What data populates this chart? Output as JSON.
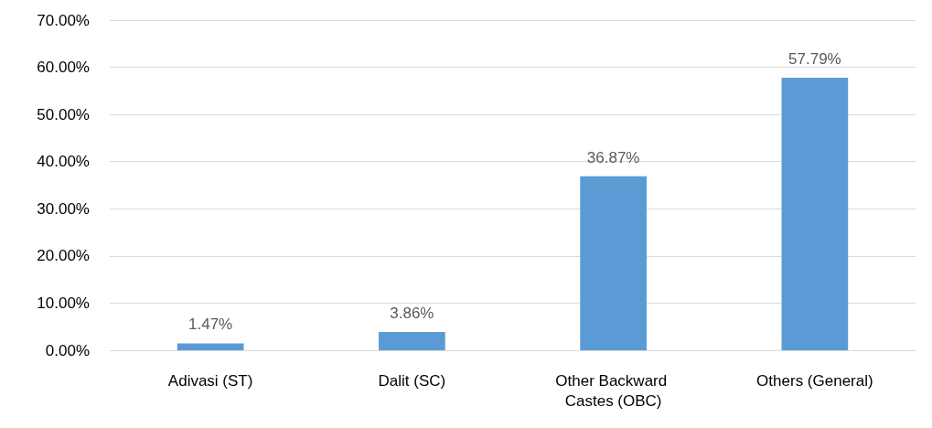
{
  "chart_data": {
    "type": "bar",
    "categories": [
      "Adivasi (ST)",
      "Dalit (SC)",
      "Other Backward Castes (OBC)",
      "Others (General)"
    ],
    "values": [
      1.47,
      3.86,
      36.87,
      57.79
    ],
    "value_labels": [
      "1.47%",
      "3.86%",
      "36.87%",
      "57.79%"
    ],
    "color": "#5b9bd5",
    "ylim": [
      0,
      70
    ],
    "yticks": [
      {
        "value": 0,
        "label": "0.00%"
      },
      {
        "value": 10,
        "label": "10.00%"
      },
      {
        "value": 20,
        "label": "20.00%"
      },
      {
        "value": 30,
        "label": "30.00%"
      },
      {
        "value": 40,
        "label": "40.00%"
      },
      {
        "value": 50,
        "label": "50.00%"
      },
      {
        "value": 60,
        "label": "60.00%"
      },
      {
        "value": 70,
        "label": "70.00%"
      }
    ],
    "grid": "y"
  }
}
